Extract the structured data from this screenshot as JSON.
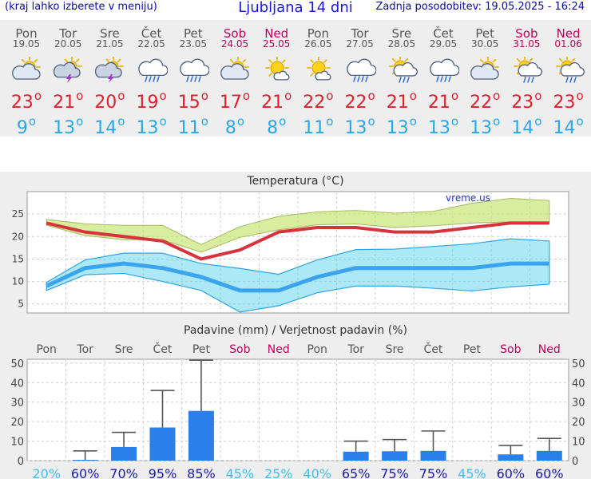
{
  "header": {
    "left_note": "(kraj lahko izberete v meniju)",
    "title": "Ljubljana 14 dni",
    "updated": "Zadnja posodobitev: 19.05.2025 - 16:24"
  },
  "colors": {
    "weekday": "#555555",
    "weekend": "#c0005a",
    "max_temp": "#e0202a",
    "min_temp": "#28a8e8",
    "precip_bar": "#2a7fe8"
  },
  "forecast": [
    {
      "day": "Pon",
      "date": "19.05",
      "weekend": false,
      "icon": "partly-cloudy-sun-icon",
      "max": "23",
      "min": "9"
    },
    {
      "day": "Tor",
      "date": "20.05",
      "weekend": false,
      "icon": "thunderstorm-sun-icon",
      "max": "21",
      "min": "13"
    },
    {
      "day": "Sre",
      "date": "21.05",
      "weekend": false,
      "icon": "thunderstorm-sun-icon",
      "max": "20",
      "min": "14"
    },
    {
      "day": "Čet",
      "date": "22.05",
      "weekend": false,
      "icon": "rain-cloud-icon",
      "max": "19",
      "min": "13"
    },
    {
      "day": "Pet",
      "date": "23.05",
      "weekend": false,
      "icon": "rain-cloud-icon",
      "max": "15",
      "min": "11"
    },
    {
      "day": "Sob",
      "date": "24.05",
      "weekend": true,
      "icon": "partly-cloudy-sun-icon",
      "max": "17",
      "min": "8"
    },
    {
      "day": "Ned",
      "date": "25.05",
      "weekend": true,
      "icon": "sunny-small-cloud-icon",
      "max": "21",
      "min": "8"
    },
    {
      "day": "Pon",
      "date": "26.05",
      "weekend": false,
      "icon": "sunny-small-cloud-icon",
      "max": "22",
      "min": "11"
    },
    {
      "day": "Tor",
      "date": "27.05",
      "weekend": false,
      "icon": "rain-cloud-icon",
      "max": "22",
      "min": "13"
    },
    {
      "day": "Sre",
      "date": "28.05",
      "weekend": false,
      "icon": "sun-rain-icon",
      "max": "21",
      "min": "13"
    },
    {
      "day": "Čet",
      "date": "29.05",
      "weekend": false,
      "icon": "rain-cloud-icon",
      "max": "21",
      "min": "13"
    },
    {
      "day": "Pet",
      "date": "30.05",
      "weekend": false,
      "icon": "partly-cloudy-sun-icon",
      "max": "22",
      "min": "13"
    },
    {
      "day": "Sob",
      "date": "31.05",
      "weekend": true,
      "icon": "sun-rain-icon",
      "max": "23",
      "min": "14"
    },
    {
      "day": "Ned",
      "date": "01.06",
      "weekend": true,
      "icon": "sun-rain-icon",
      "max": "23",
      "min": "14"
    }
  ],
  "chart_data": [
    {
      "type": "line",
      "title": "Temperatura (°C)",
      "watermark": "vreme.us",
      "x": [
        "19.05",
        "20.05",
        "21.05",
        "22.05",
        "23.05",
        "24.05",
        "25.05",
        "26.05",
        "27.05",
        "28.05",
        "29.05",
        "30.05",
        "31.05",
        "01.06"
      ],
      "ylim": [
        3,
        30
      ],
      "yticks": [
        5,
        10,
        15,
        20,
        25
      ],
      "grid": true,
      "series": [
        {
          "values": [
            23,
            21,
            20,
            19,
            15,
            17,
            21,
            22,
            22,
            21,
            21,
            22,
            23,
            23
          ],
          "band_low": [
            22.5,
            20.2,
            19.3,
            19.3,
            16.5,
            19.8,
            21.5,
            22.6,
            22.8,
            22,
            22.4,
            23,
            23.3,
            23
          ],
          "band_high": [
            23.8,
            22.8,
            22.5,
            22.5,
            18.2,
            22.2,
            24.5,
            25.5,
            25.8,
            25.2,
            25.6,
            27.4,
            28.5,
            28
          ]
        },
        {
          "values": [
            9,
            13,
            14,
            13,
            11,
            8,
            8,
            11,
            13,
            13,
            13,
            13,
            14,
            14
          ],
          "band_low": [
            8,
            11.5,
            11.8,
            10,
            8,
            3.2,
            4.6,
            7.5,
            9,
            9,
            8.5,
            7.9,
            8.8,
            9.4
          ],
          "band_high": [
            9.8,
            14.8,
            16.3,
            16.3,
            14,
            12.9,
            11.6,
            14.8,
            17.1,
            17.2,
            17.8,
            18.4,
            19.5,
            19
          ]
        }
      ]
    },
    {
      "type": "bar",
      "title": "Padavine (mm) / Verjetnost padavin (%)",
      "categories": [
        "Pon",
        "Tor",
        "Sre",
        "Čet",
        "Pet",
        "Sob",
        "Ned",
        "Pon",
        "Tor",
        "Sre",
        "Čet",
        "Pet",
        "Sob",
        "Ned"
      ],
      "weekend": [
        false,
        false,
        false,
        false,
        false,
        true,
        true,
        false,
        false,
        false,
        false,
        false,
        true,
        true
      ],
      "values": [
        0,
        0.4,
        7,
        17,
        25.5,
        0,
        0,
        0,
        4.6,
        4.8,
        5,
        0,
        3.2,
        5
      ],
      "error_high": [
        0,
        5,
        14.5,
        36,
        51.5,
        0,
        0,
        0,
        10,
        10.8,
        15.2,
        0,
        7.8,
        11.4
      ],
      "probability": [
        "20%",
        "60%",
        "70%",
        "95%",
        "85%",
        "45%",
        "25%",
        "40%",
        "65%",
        "75%",
        "75%",
        "45%",
        "60%",
        "60%"
      ],
      "ylim": [
        0,
        52
      ],
      "yticks": [
        0,
        10,
        20,
        30,
        40,
        50
      ]
    }
  ]
}
